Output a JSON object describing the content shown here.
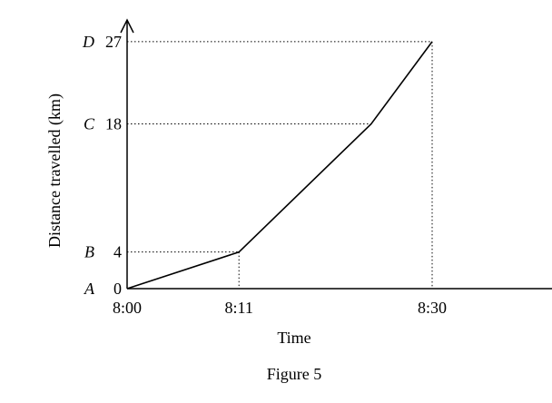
{
  "chart_data": {
    "type": "line",
    "title": "",
    "caption": "Figure 5",
    "xlabel": "Time",
    "ylabel": "Distance travelled (km)",
    "x": [
      "8:00",
      "8:11",
      "8:24",
      "8:30"
    ],
    "x_minutes_after_8": [
      0,
      11,
      24,
      30
    ],
    "y": [
      0,
      4,
      18,
      27
    ],
    "xlim_minutes_after_8": [
      0,
      38
    ],
    "ylim": [
      0,
      29
    ],
    "x_ticks": [
      {
        "label": "8:00",
        "value": 0
      },
      {
        "label": "8:11",
        "value": 11
      },
      {
        "label": "8:30",
        "value": 30
      }
    ],
    "y_ticks": [
      {
        "letter": "A",
        "label": "0",
        "value": 0
      },
      {
        "letter": "B",
        "label": "4",
        "value": 4
      },
      {
        "letter": "C",
        "label": "18",
        "value": 18
      },
      {
        "letter": "D",
        "label": "27",
        "value": 27
      }
    ],
    "dotted_guides": [
      {
        "x": 11,
        "y": 4
      },
      {
        "x": 24,
        "y": 18
      },
      {
        "x": 30,
        "y": 27
      }
    ],
    "grid": false,
    "legend": "none"
  }
}
